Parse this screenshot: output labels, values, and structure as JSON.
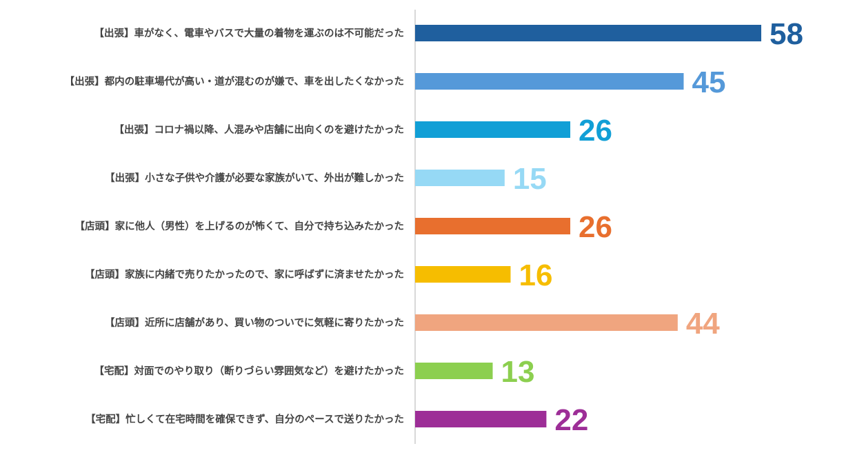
{
  "chart_data": {
    "type": "bar",
    "orientation": "horizontal",
    "categories": [
      "【出張】車がなく、電車やバスで大量の着物を運ぶのは不可能だった",
      "【出張】都内の駐車場代が高い・道が混むのが嫌で、車を出したくなかった",
      "【出張】コロナ禍以降、人混みや店舗に出向くのを避けたかった",
      "【出張】小さな子供や介護が必要な家族がいて、外出が難しかった",
      "【店頭】家に他人（男性）を上げるのが怖くて、自分で持ち込みたかった",
      "【店頭】家族に内緒で売りたかったので、家に呼ばずに済ませたかった",
      "【店頭】近所に店舗があり、買い物のついでに気軽に寄りたかった",
      "【宅配】対面でのやり取り（断りづらい雰囲気など）を避けたかった",
      "【宅配】忙しくて在宅時間を確保できず、自分のペースで送りたかった"
    ],
    "values": [
      58,
      45,
      26,
      15,
      26,
      16,
      44,
      13,
      22
    ],
    "value_labels": [
      "58",
      "45",
      "26",
      "15",
      "26",
      "16",
      "44",
      "13",
      "22"
    ],
    "colors": [
      "#1f5f9e",
      "#5599d9",
      "#119fd6",
      "#96d9f5",
      "#e86f2e",
      "#f6bd00",
      "#f0a57f",
      "#8ccf4f",
      "#9d2e97"
    ],
    "xlim": [
      0,
      60
    ],
    "grid": false,
    "legend": "none",
    "title": "",
    "xlabel": "",
    "ylabel": ""
  }
}
